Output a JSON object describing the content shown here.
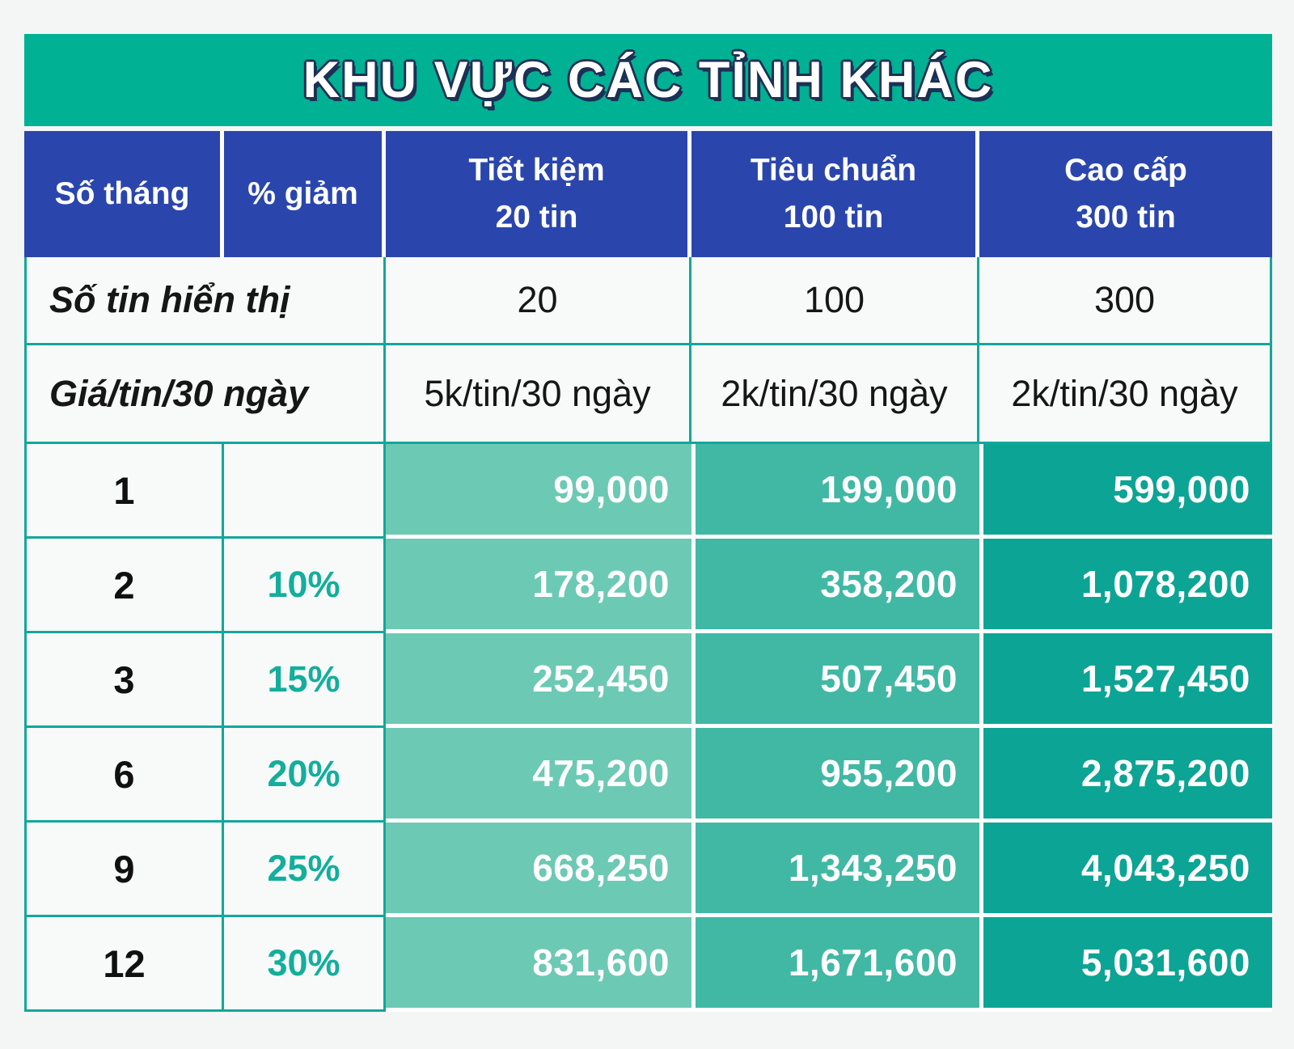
{
  "title": "KHU VỰC CÁC TỈNH KHÁC",
  "colors": {
    "page_bg": "#f4f6f5",
    "title_bg": "#00b194",
    "title_text": "#ffffff",
    "title_outline": "#1d3055",
    "header_bg": "#2a46ad",
    "header_text": "#ffffff",
    "cell_bg": "#f8faf9",
    "grid_teal": "#12a79a",
    "months_text": "#101010",
    "discount_text": "#13ae9c",
    "price_text": "#ffffff",
    "plan_col_bg": [
      "#6cc9b4",
      "#40b8a4",
      "#0ca494"
    ]
  },
  "chart_data": {
    "type": "table",
    "title": "KHU VỰC CÁC TỈNH KHÁC",
    "header": {
      "months_label": "Số tháng",
      "discount_label": "% giảm",
      "plans": [
        {
          "name": "Tiết kiệm",
          "quota": "20 tin"
        },
        {
          "name": "Tiêu chuẩn",
          "quota": "100 tin"
        },
        {
          "name": "Cao cấp",
          "quota": "300 tin"
        }
      ]
    },
    "info_rows": [
      {
        "label": "Số tin hiển thị",
        "values": [
          "20",
          "100",
          "300"
        ]
      },
      {
        "label": "Giá/tin/30 ngày",
        "values": [
          "5k/tin/30 ngày",
          "2k/tin/30 ngày",
          "2k/tin/30 ngày"
        ]
      }
    ],
    "pricing_rows": [
      {
        "months": "1",
        "discount": "",
        "prices": [
          "99,000",
          "199,000",
          "599,000"
        ]
      },
      {
        "months": "2",
        "discount": "10%",
        "prices": [
          "178,200",
          "358,200",
          "1,078,200"
        ]
      },
      {
        "months": "3",
        "discount": "15%",
        "prices": [
          "252,450",
          "507,450",
          "1,527,450"
        ]
      },
      {
        "months": "6",
        "discount": "20%",
        "prices": [
          "475,200",
          "955,200",
          "2,875,200"
        ]
      },
      {
        "months": "9",
        "discount": "25%",
        "prices": [
          "668,250",
          "1,343,250",
          "4,043,250"
        ]
      },
      {
        "months": "12",
        "discount": "30%",
        "prices": [
          "831,600",
          "1,671,600",
          "5,031,600"
        ]
      }
    ]
  }
}
